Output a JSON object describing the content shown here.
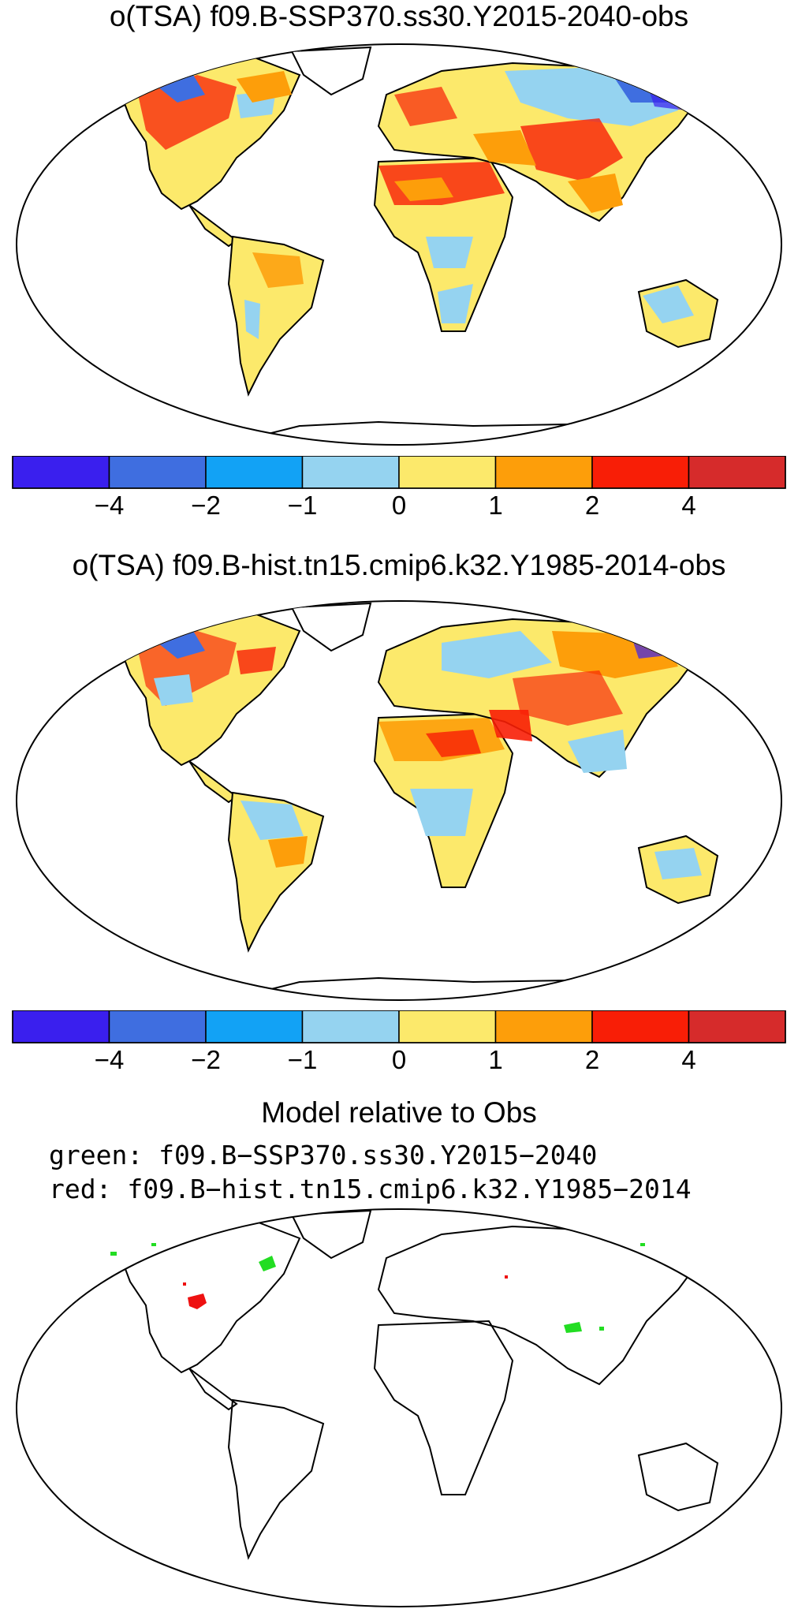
{
  "panel1": {
    "title": "o(TSA) f09.B-SSP370.ss30.Y2015-2040-obs"
  },
  "panel2": {
    "title": "o(TSA) f09.B-hist.tn15.cmip6.k32.Y1985-2014-obs"
  },
  "colorbar": {
    "colors": [
      "#3a1fee",
      "#3f6ee0",
      "#12a2f5",
      "#95d3f0",
      "#fce96b",
      "#fd9e0a",
      "#f81e06",
      "#d62b2b"
    ],
    "ticks": [
      "−4",
      "−2",
      "−1",
      "0",
      "1",
      "2",
      "4"
    ]
  },
  "panel3": {
    "title": "Model relative to Obs",
    "legend_green": "green: f09.B−SSP370.ss30.Y2015−2040",
    "legend_red": "red: f09.B−hist.tn15.cmip6.k32.Y1985−2014",
    "green_color": "#22dd22",
    "red_color": "#ee1111"
  }
}
